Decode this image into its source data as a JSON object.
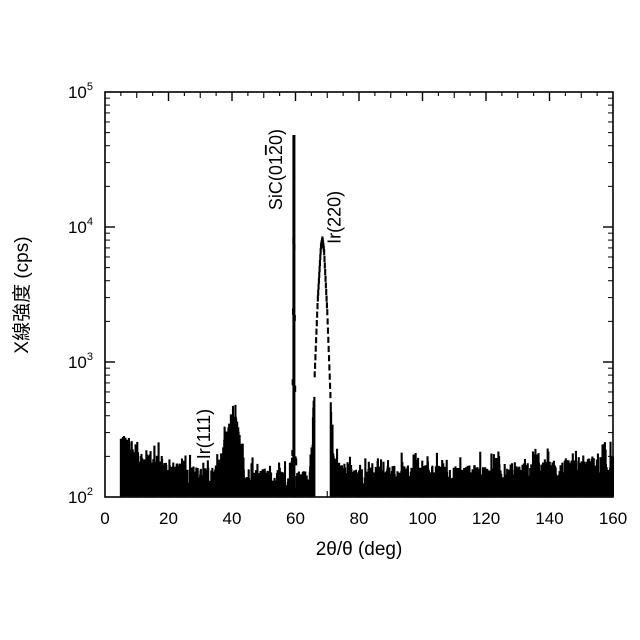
{
  "chart_data": {
    "type": "line",
    "xlabel": "2θ/θ (deg)",
    "ylabel": "X線強度 (cps)",
    "x_ticks": [
      "0",
      "20",
      "40",
      "60",
      "80",
      "100",
      "120",
      "140",
      "160"
    ],
    "y_ticks": [
      {
        "base": "10",
        "exp": "2"
      },
      {
        "base": "10",
        "exp": "3"
      },
      {
        "base": "10",
        "exp": "4"
      },
      {
        "base": "10",
        "exp": "5"
      }
    ],
    "xlim": [
      0,
      160
    ],
    "ylim": [
      100,
      100000
    ],
    "y_scale": "log",
    "grid": false,
    "annotations": [
      {
        "text": "SiC(01",
        "overbar": "2",
        "tail": "0)",
        "x": 59.5,
        "y": 48000
      },
      {
        "text": "Ir(220)",
        "x": 68.5,
        "y": 8600
      },
      {
        "text": "Ir(111)",
        "x": 36.8,
        "y": 420
      }
    ],
    "series": [
      {
        "x": [
          5,
          6,
          8,
          10,
          12,
          14,
          16,
          18,
          20,
          22,
          25,
          28,
          30,
          32,
          34,
          36,
          37,
          38,
          39,
          40,
          41,
          42,
          43,
          45,
          48,
          50,
          53,
          55,
          57,
          58,
          59,
          59.5,
          60,
          61,
          63,
          65,
          66,
          67,
          68,
          68.5,
          69,
          70,
          71,
          72,
          75,
          80,
          90,
          100,
          110,
          120,
          130,
          140,
          150,
          155,
          160
        ],
        "y": [
          320,
          300,
          240,
          260,
          220,
          230,
          210,
          200,
          190,
          180,
          175,
          170,
          165,
          160,
          165,
          200,
          230,
          300,
          350,
          380,
          420,
          360,
          220,
          170,
          160,
          165,
          155,
          160,
          150,
          160,
          200,
          48000,
          200,
          160,
          160,
          200,
          800,
          3000,
          7500,
          8600,
          7000,
          2500,
          600,
          200,
          170,
          165,
          170,
          175,
          170,
          175,
          180,
          185,
          190,
          200,
          210
        ]
      }
    ]
  }
}
